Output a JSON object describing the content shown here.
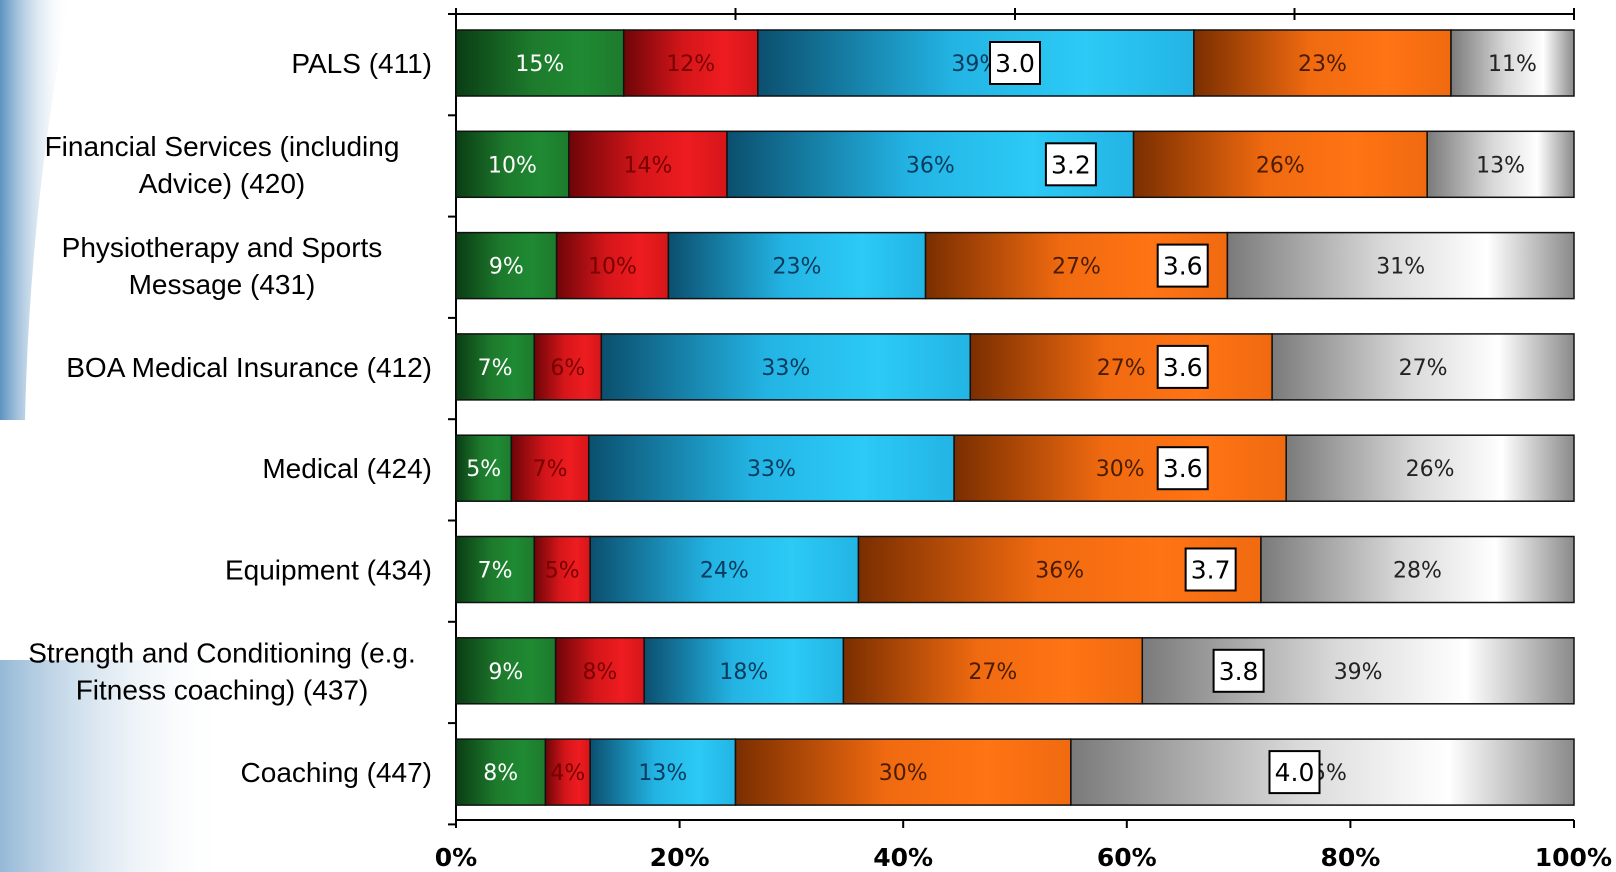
{
  "chart_data": {
    "type": "bar",
    "orientation": "horizontal",
    "stacked": true,
    "percent_stacked": true,
    "title": "",
    "xlabel": "",
    "ylabel": "",
    "xlim": [
      0,
      100
    ],
    "grid": false,
    "legend": "none",
    "x_tick_labels": [
      "0%",
      "20%",
      "40%",
      "60%",
      "80%",
      "100%"
    ],
    "categories": [
      "PALS (411)",
      "Financial Services (including Advice) (420)",
      "Physiotherapy and Sports Message (431)",
      "BOA Medical Insurance (412)",
      "Medical (424)",
      "Equipment (434)",
      "Strength and Conditioning (e.g. Fitness coaching) (437)",
      "Coaching (447)"
    ],
    "category_lines": [
      [
        "PALS (411)"
      ],
      [
        "Financial Services (including",
        "Advice) (420)"
      ],
      [
        "Physiotherapy and Sports",
        "Message (431)"
      ],
      [
        "BOA Medical Insurance (412)"
      ],
      [
        "Medical (424)"
      ],
      [
        "Equipment (434)"
      ],
      [
        "Strength and Conditioning (e.g.",
        "Fitness coaching) (437)"
      ],
      [
        "Coaching (447)"
      ]
    ],
    "series_colors": [
      "#1d7a2c",
      "#d5161a",
      "#23b4e4",
      "#f06a10",
      "#d9d9d9"
    ],
    "series_label_colors": [
      "#ffffff",
      "#7a0000",
      "#0a3a5c",
      "#4a1c00",
      "#222222"
    ],
    "rows": [
      {
        "values": [
          15,
          12,
          39,
          23,
          11
        ],
        "labels": [
          "15%",
          "12%",
          "39%",
          "23%",
          "11%"
        ],
        "mean": "3.0",
        "mean_value": 3.0
      },
      {
        "values": [
          10,
          14,
          36,
          26,
          13
        ],
        "labels": [
          "10%",
          "14%",
          "36%",
          "26%",
          "13%"
        ],
        "mean": "3.2",
        "mean_value": 3.2
      },
      {
        "values": [
          9,
          10,
          23,
          27,
          31
        ],
        "labels": [
          "9%",
          "10%",
          "23%",
          "27%",
          "31%"
        ],
        "mean": "3.6",
        "mean_value": 3.6
      },
      {
        "values": [
          7,
          6,
          33,
          27,
          27
        ],
        "labels": [
          "7%",
          "6%",
          "33%",
          "27%",
          "27%"
        ],
        "mean": "3.6",
        "mean_value": 3.6
      },
      {
        "values": [
          5,
          7,
          33,
          30,
          26
        ],
        "labels": [
          "5%",
          "7%",
          "33%",
          "30%",
          "26%"
        ],
        "mean": "3.6",
        "mean_value": 3.6
      },
      {
        "values": [
          7,
          5,
          24,
          36,
          28
        ],
        "labels": [
          "7%",
          "5%",
          "24%",
          "36%",
          "28%"
        ],
        "mean": "3.7",
        "mean_value": 3.7
      },
      {
        "values": [
          9,
          8,
          18,
          27,
          39
        ],
        "labels": [
          "9%",
          "8%",
          "18%",
          "27%",
          "39%"
        ],
        "mean": "3.8",
        "mean_value": 3.8
      },
      {
        "values": [
          8,
          4,
          13,
          30,
          45
        ],
        "labels": [
          "8%",
          "4%",
          "13%",
          "30%",
          "45%"
        ],
        "mean": "4.0",
        "mean_value": 4.0
      }
    ]
  }
}
